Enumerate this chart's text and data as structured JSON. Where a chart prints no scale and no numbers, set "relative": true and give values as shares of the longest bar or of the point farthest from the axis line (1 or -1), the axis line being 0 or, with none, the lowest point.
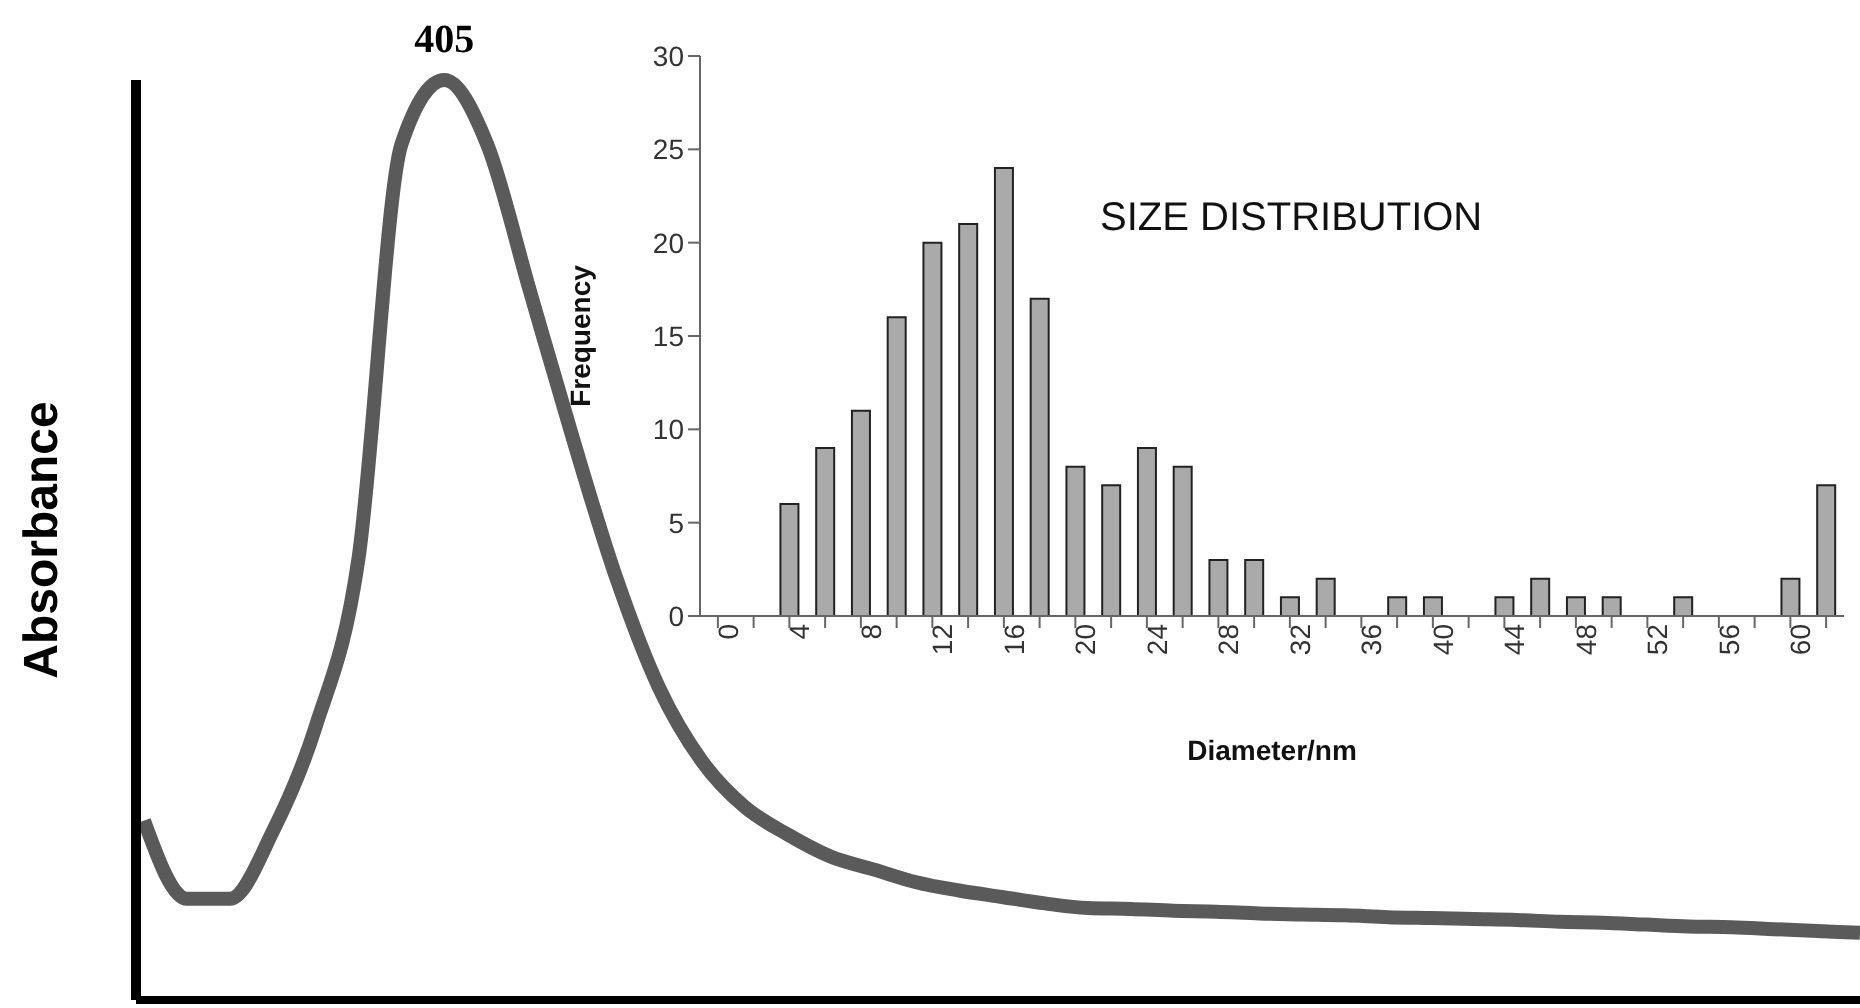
{
  "chart_data": [
    {
      "type": "line",
      "relative": true,
      "ylabel": "Absorbance",
      "color": "#5a5a5a",
      "annotations": [
        "405"
      ],
      "categories": [
        null,
        null,
        null,
        null,
        null,
        null,
        null,
        null,
        null,
        null,
        null,
        null,
        null,
        null,
        null,
        null,
        null,
        null,
        null,
        null,
        null,
        null,
        null,
        null,
        null,
        null,
        null,
        null,
        null,
        null,
        null,
        null,
        null,
        null,
        null,
        null,
        null,
        null,
        null,
        null,
        null
      ],
      "values": [
        0.195,
        0.11,
        0.11,
        0.183,
        0.297,
        0.48,
        0.93,
        1.0,
        0.93,
        0.77,
        0.61,
        0.46,
        0.34,
        0.26,
        0.21,
        0.18,
        0.156,
        0.142,
        0.128,
        0.119,
        0.112,
        0.105,
        0.1,
        0.099,
        0.097,
        0.096,
        0.094,
        0.093,
        0.092,
        0.09,
        0.089,
        0.088,
        0.087,
        0.085,
        0.084,
        0.082,
        0.08,
        0.079,
        0.077,
        0.075,
        0.073
      ]
    },
    {
      "type": "bar",
      "title": "SIZE DISTRIBUTION",
      "xlabel": "Diameter/nm",
      "ylabel": "Frequency",
      "color": "#aaaaaa",
      "ylim": [
        0,
        30
      ],
      "yticks": [
        0,
        5,
        10,
        15,
        20,
        25,
        30
      ],
      "categories": [
        "0",
        null,
        "4",
        null,
        "8",
        null,
        "12",
        null,
        "16",
        null,
        "20",
        null,
        "24",
        null,
        "28",
        null,
        "32",
        null,
        "36",
        null,
        "40",
        null,
        "44",
        null,
        "48",
        null,
        "52",
        null,
        "56",
        null,
        "60",
        null
      ],
      "values": [
        0,
        0,
        6,
        9,
        11,
        16,
        20,
        21,
        24,
        17,
        8,
        7,
        9,
        8,
        3,
        3,
        1,
        2,
        0,
        1,
        1,
        0,
        1,
        2,
        1,
        1,
        0,
        1,
        0,
        0,
        2,
        7
      ]
    }
  ]
}
